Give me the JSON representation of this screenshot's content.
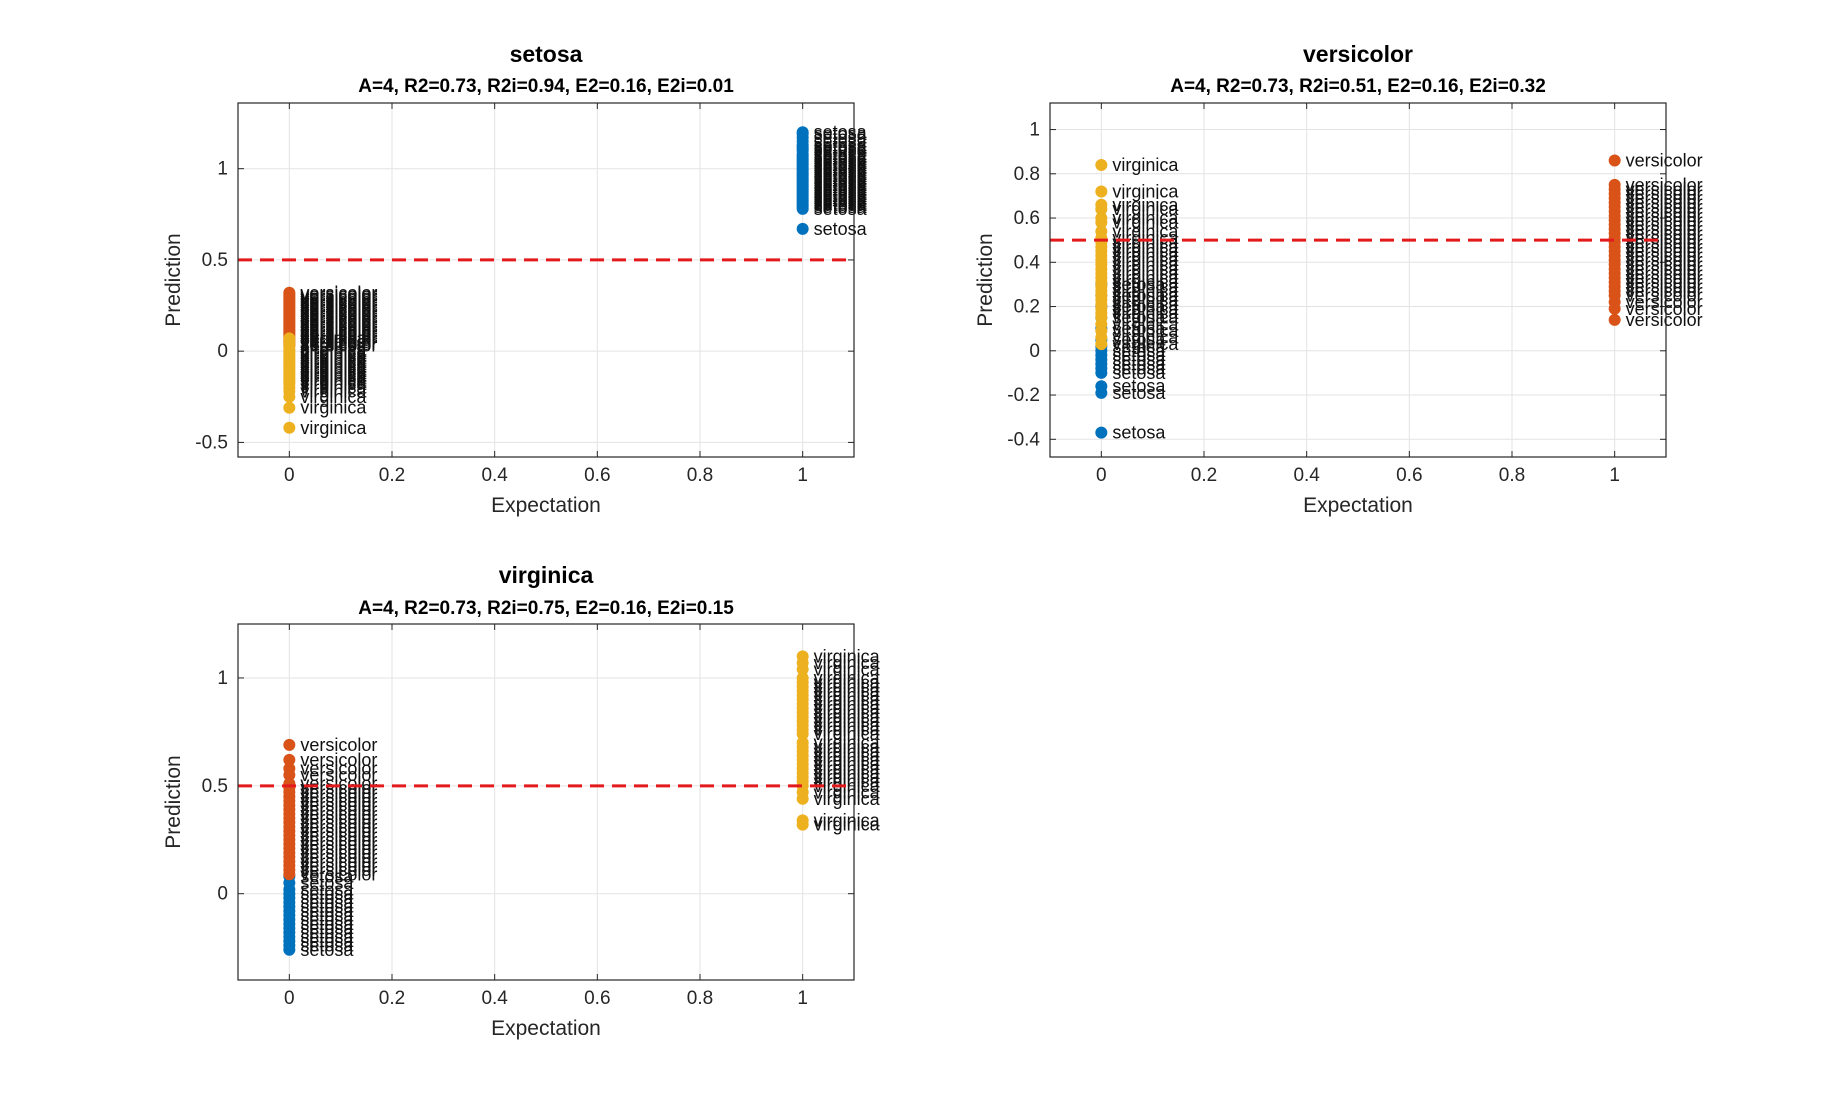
{
  "chart_data": [
    {
      "type": "scatter",
      "title": "setosa",
      "subtitle": "A=4, R2=0.73, R2i=0.94, E2=0.16, E2i=0.01",
      "xlabel": "Expectation",
      "ylabel": "Prediction",
      "xlim": [
        -0.1,
        1.1
      ],
      "ylim": [
        -0.58,
        1.36
      ],
      "xticks": [
        0,
        0.2,
        0.4,
        0.6,
        0.8,
        1
      ],
      "xtick_labels": [
        "0",
        "0.2",
        "0.4",
        "0.6",
        "0.8",
        "1"
      ],
      "yticks": [
        -0.5,
        0,
        0.5,
        1
      ],
      "ytick_labels": [
        "-0.5",
        "0",
        "0.5",
        "1"
      ],
      "grid": true,
      "threshold": 0.5,
      "threshold_color": "#e31a1c",
      "series": [
        {
          "name": "setosa",
          "color": "#0072BD",
          "x": 1,
          "values": [
            1.2,
            1.19,
            1.17,
            1.15,
            1.13,
            1.12,
            1.11,
            1.1,
            1.08,
            1.07,
            1.06,
            1.05,
            1.04,
            1.03,
            1.02,
            1.01,
            1.0,
            0.99,
            0.98,
            0.97,
            0.96,
            0.95,
            0.94,
            0.93,
            0.92,
            0.91,
            0.9,
            0.89,
            0.88,
            0.87,
            0.86,
            0.85,
            0.84,
            0.83,
            0.82,
            0.81,
            0.8,
            0.79,
            0.78,
            0.67
          ]
        },
        {
          "name": "versicolor",
          "color": "#D95319",
          "x": 0,
          "values": [
            0.32,
            0.31,
            0.3,
            0.29,
            0.28,
            0.27,
            0.26,
            0.25,
            0.24,
            0.23,
            0.22,
            0.21,
            0.2,
            0.19,
            0.18,
            0.17,
            0.16,
            0.15,
            0.14,
            0.13,
            0.12,
            0.11,
            0.1,
            0.09,
            0.08,
            0.07,
            0.06,
            0.05,
            0.04,
            0.03
          ]
        },
        {
          "name": "virginica",
          "color": "#EDB120",
          "x": 0,
          "values": [
            0.07,
            0.05,
            0.03,
            0.01,
            0.0,
            -0.01,
            -0.02,
            -0.03,
            -0.04,
            -0.05,
            -0.06,
            -0.07,
            -0.08,
            -0.09,
            -0.1,
            -0.11,
            -0.12,
            -0.13,
            -0.14,
            -0.15,
            -0.16,
            -0.17,
            -0.18,
            -0.2,
            -0.22,
            -0.25,
            -0.31,
            -0.42
          ]
        }
      ]
    },
    {
      "type": "scatter",
      "title": "versicolor",
      "subtitle": "A=4, R2=0.73, R2i=0.51, E2=0.16, E2i=0.32",
      "xlabel": "Expectation",
      "ylabel": "Prediction",
      "xlim": [
        -0.1,
        1.1
      ],
      "ylim": [
        -0.48,
        1.12
      ],
      "xticks": [
        0,
        0.2,
        0.4,
        0.6,
        0.8,
        1
      ],
      "xtick_labels": [
        "0",
        "0.2",
        "0.4",
        "0.6",
        "0.8",
        "1"
      ],
      "yticks": [
        -0.4,
        -0.2,
        0,
        0.2,
        0.4,
        0.6,
        0.8,
        1
      ],
      "ytick_labels": [
        "-0.4",
        "-0.2",
        "0",
        "0.2",
        "0.4",
        "0.6",
        "0.8",
        "1"
      ],
      "grid": true,
      "threshold": 0.5,
      "threshold_color": "#e31a1c",
      "series": [
        {
          "name": "setosa",
          "color": "#0072BD",
          "x": 0,
          "values": [
            0.3,
            0.25,
            0.2,
            0.15,
            0.1,
            0.05,
            0.02,
            0.0,
            -0.02,
            -0.04,
            -0.06,
            -0.08,
            -0.1,
            -0.16,
            -0.19,
            -0.37
          ]
        },
        {
          "name": "versicolor",
          "color": "#D95319",
          "x": 1,
          "values": [
            0.86,
            0.75,
            0.73,
            0.71,
            0.69,
            0.67,
            0.65,
            0.63,
            0.61,
            0.59,
            0.57,
            0.55,
            0.53,
            0.51,
            0.49,
            0.47,
            0.45,
            0.43,
            0.41,
            0.39,
            0.37,
            0.35,
            0.33,
            0.31,
            0.29,
            0.27,
            0.25,
            0.22,
            0.19,
            0.14
          ]
        },
        {
          "name": "virginica",
          "color": "#EDB120",
          "x": 0,
          "values": [
            0.84,
            0.72,
            0.66,
            0.64,
            0.6,
            0.58,
            0.54,
            0.51,
            0.49,
            0.47,
            0.45,
            0.43,
            0.41,
            0.39,
            0.37,
            0.35,
            0.33,
            0.31,
            0.29,
            0.27,
            0.25,
            0.23,
            0.21,
            0.19,
            0.17,
            0.15,
            0.12,
            0.09,
            0.06,
            0.03
          ]
        }
      ]
    },
    {
      "type": "scatter",
      "title": "virginica",
      "subtitle": "A=4, R2=0.73, R2i=0.75, E2=0.16, E2i=0.15",
      "xlabel": "Expectation",
      "ylabel": "Prediction",
      "xlim": [
        -0.1,
        1.1
      ],
      "ylim": [
        -0.4,
        1.25
      ],
      "xticks": [
        0,
        0.2,
        0.4,
        0.6,
        0.8,
        1
      ],
      "xtick_labels": [
        "0",
        "0.2",
        "0.4",
        "0.6",
        "0.8",
        "1"
      ],
      "yticks": [
        0,
        0.5,
        1
      ],
      "ytick_labels": [
        "0",
        "0.5",
        "1"
      ],
      "grid": true,
      "threshold": 0.5,
      "threshold_color": "#e31a1c",
      "series": [
        {
          "name": "setosa",
          "color": "#0072BD",
          "x": 0,
          "values": [
            0.08,
            0.05,
            0.02,
            0.0,
            -0.02,
            -0.04,
            -0.06,
            -0.08,
            -0.1,
            -0.12,
            -0.14,
            -0.16,
            -0.18,
            -0.2,
            -0.22,
            -0.24,
            -0.26
          ]
        },
        {
          "name": "versicolor",
          "color": "#D95319",
          "x": 0,
          "values": [
            0.69,
            0.62,
            0.58,
            0.55,
            0.51,
            0.49,
            0.47,
            0.45,
            0.43,
            0.41,
            0.39,
            0.37,
            0.35,
            0.33,
            0.31,
            0.29,
            0.27,
            0.25,
            0.23,
            0.21,
            0.19,
            0.17,
            0.15,
            0.13,
            0.11,
            0.09
          ]
        },
        {
          "name": "virginica",
          "color": "#EDB120",
          "x": 1,
          "values": [
            1.1,
            1.07,
            1.04,
            1.0,
            0.98,
            0.96,
            0.94,
            0.92,
            0.9,
            0.88,
            0.86,
            0.84,
            0.82,
            0.8,
            0.78,
            0.76,
            0.74,
            0.7,
            0.68,
            0.66,
            0.64,
            0.62,
            0.6,
            0.58,
            0.56,
            0.54,
            0.52,
            0.5,
            0.47,
            0.44,
            0.34,
            0.32
          ]
        }
      ]
    }
  ]
}
